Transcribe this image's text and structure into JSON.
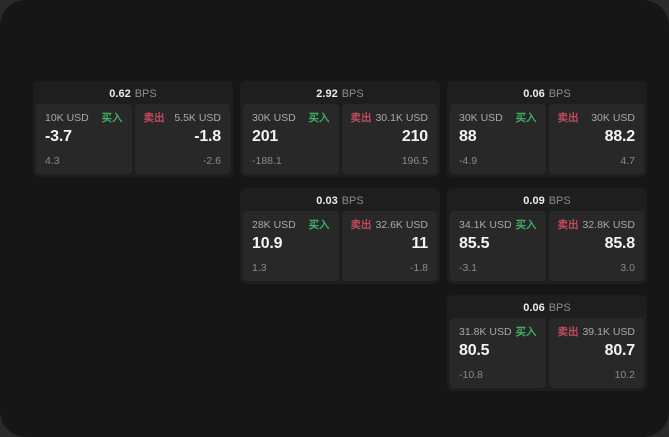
{
  "labels": {
    "bps": "BPS",
    "buy": "买入",
    "sell": "卖出"
  },
  "colors": {
    "buy_accent": "#3fae63",
    "sell_accent": "#c04b5c",
    "panel_bg": "#282828",
    "card_bg": "#1e1e1e",
    "screen_bg": "#161616"
  },
  "cards": [
    {
      "bps": "0.62",
      "buy_size": "10K USD",
      "buy_value": "-3.7",
      "buy_sub": "4.3",
      "sell_size": "5.5K USD",
      "sell_value": "-1.8",
      "sell_sub": "-2.6"
    },
    {
      "bps": "2.92",
      "buy_size": "30K USD",
      "buy_value": "201",
      "buy_sub": "-188.1",
      "sell_size": "30.1K USD",
      "sell_value": "210",
      "sell_sub": "196.5"
    },
    {
      "bps": "0.06",
      "buy_size": "30K USD",
      "buy_value": "88",
      "buy_sub": "-4.9",
      "sell_size": "30K USD",
      "sell_value": "88.2",
      "sell_sub": "4.7"
    },
    {
      "bps": "0.03",
      "buy_size": "28K USD",
      "buy_value": "10.9",
      "buy_sub": "1.3",
      "sell_size": "32.6K USD",
      "sell_value": "11",
      "sell_sub": "-1.8"
    },
    {
      "bps": "0.09",
      "buy_size": "34.1K USD",
      "buy_value": "85.5",
      "buy_sub": "-3.1",
      "sell_size": "32.8K USD",
      "sell_value": "85.8",
      "sell_sub": "3.0"
    },
    {
      "bps": "0.06",
      "buy_size": "31.8K USD",
      "buy_value": "80.5",
      "buy_sub": "-10.8",
      "sell_size": "39.1K USD",
      "sell_value": "80.7",
      "sell_sub": "10.2"
    }
  ]
}
